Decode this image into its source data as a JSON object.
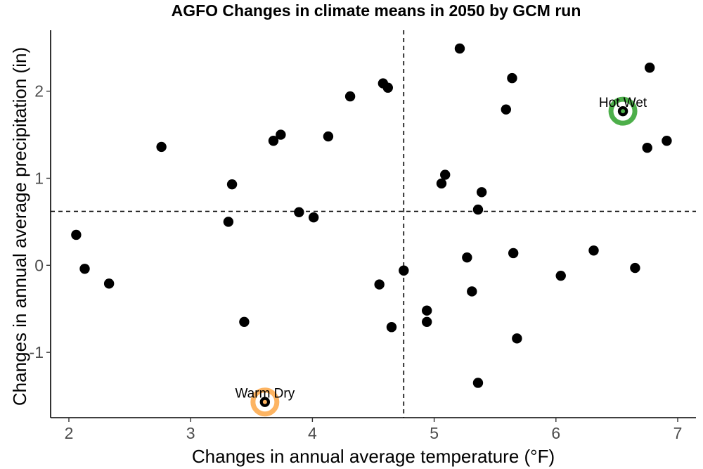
{
  "chart_data": {
    "type": "scatter",
    "title": "AGFO Changes in climate means in 2050 by GCM run",
    "xlabel": "Changes in annual average temperature (°F)",
    "ylabel": "Changes in annual average precipitation (in)",
    "xlim": [
      1.85,
      7.15
    ],
    "ylim": [
      -1.75,
      2.7
    ],
    "xticks": [
      2,
      3,
      4,
      5,
      6,
      7
    ],
    "yticks": [
      -1,
      0,
      1,
      2
    ],
    "xtick_labels": [
      "2",
      "3",
      "4",
      "5",
      "6",
      "7"
    ],
    "ytick_labels": [
      "-1",
      "0",
      "1",
      "2"
    ],
    "grid": false,
    "point_color": "#000000",
    "reference_lines": {
      "x": 4.75,
      "y": 0.62,
      "style": "dashed"
    },
    "points": [
      {
        "x": 2.06,
        "y": 0.35
      },
      {
        "x": 2.13,
        "y": -0.04
      },
      {
        "x": 2.33,
        "y": -0.21
      },
      {
        "x": 2.76,
        "y": 1.36
      },
      {
        "x": 3.31,
        "y": 0.5
      },
      {
        "x": 3.34,
        "y": 0.93
      },
      {
        "x": 3.44,
        "y": -0.65
      },
      {
        "x": 3.61,
        "y": -1.57
      },
      {
        "x": 3.68,
        "y": 1.43
      },
      {
        "x": 3.74,
        "y": 1.5
      },
      {
        "x": 3.89,
        "y": 0.61
      },
      {
        "x": 4.01,
        "y": 0.55
      },
      {
        "x": 4.13,
        "y": 1.48
      },
      {
        "x": 4.31,
        "y": 1.94
      },
      {
        "x": 4.55,
        "y": -0.22
      },
      {
        "x": 4.58,
        "y": 2.09
      },
      {
        "x": 4.62,
        "y": 2.04
      },
      {
        "x": 4.65,
        "y": -0.71
      },
      {
        "x": 4.75,
        "y": -0.06
      },
      {
        "x": 4.94,
        "y": -0.52
      },
      {
        "x": 4.94,
        "y": -0.65
      },
      {
        "x": 5.06,
        "y": 0.94
      },
      {
        "x": 5.09,
        "y": 1.04
      },
      {
        "x": 5.21,
        "y": 2.49
      },
      {
        "x": 5.27,
        "y": 0.09
      },
      {
        "x": 5.31,
        "y": -0.3
      },
      {
        "x": 5.36,
        "y": 0.64
      },
      {
        "x": 5.36,
        "y": -1.35
      },
      {
        "x": 5.39,
        "y": 0.84
      },
      {
        "x": 5.59,
        "y": 1.79
      },
      {
        "x": 5.64,
        "y": 2.15
      },
      {
        "x": 5.65,
        "y": 0.14
      },
      {
        "x": 5.68,
        "y": -0.84
      },
      {
        "x": 6.04,
        "y": -0.12
      },
      {
        "x": 6.31,
        "y": 0.17
      },
      {
        "x": 6.55,
        "y": 1.77
      },
      {
        "x": 6.65,
        "y": -0.03
      },
      {
        "x": 6.75,
        "y": 1.35
      },
      {
        "x": 6.77,
        "y": 2.27
      },
      {
        "x": 6.91,
        "y": 1.43
      }
    ],
    "highlights": [
      {
        "label": "Hot Wet",
        "x": 6.55,
        "y": 1.77,
        "color": "#4daf4a",
        "center_color": "#4daf4a"
      },
      {
        "label": "Warm Dry",
        "x": 3.61,
        "y": -1.57,
        "color": "#fdb462",
        "center_color": "#fdb462"
      }
    ]
  }
}
